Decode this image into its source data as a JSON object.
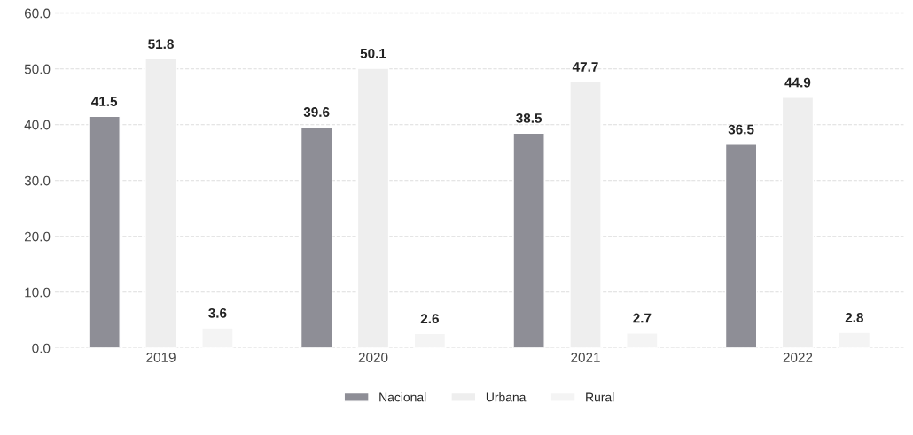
{
  "chart_data": {
    "type": "bar",
    "categories": [
      "2019",
      "2020",
      "2021",
      "2022"
    ],
    "series": [
      {
        "name": "Nacional",
        "color": "#8e8e96",
        "values": [
          41.5,
          39.6,
          38.5,
          36.5
        ]
      },
      {
        "name": "Urbana",
        "color": "#eeeeee",
        "values": [
          51.8,
          50.1,
          47.7,
          44.9
        ]
      },
      {
        "name": "Rural",
        "color": "#f4f4f4",
        "values": [
          3.6,
          2.6,
          2.7,
          2.8
        ]
      }
    ],
    "ylim": [
      0,
      60
    ],
    "yticks": [
      {
        "value": 0,
        "label": "0.0"
      },
      {
        "value": 10,
        "label": "10.0"
      },
      {
        "value": 20,
        "label": "20.0"
      },
      {
        "value": 30,
        "label": "30.0"
      },
      {
        "value": 40,
        "label": "40.0"
      },
      {
        "value": 50,
        "label": "50.0"
      },
      {
        "value": 60,
        "label": "60.0"
      }
    ],
    "grid": "y",
    "legend": "bottom",
    "data_labels": true
  }
}
